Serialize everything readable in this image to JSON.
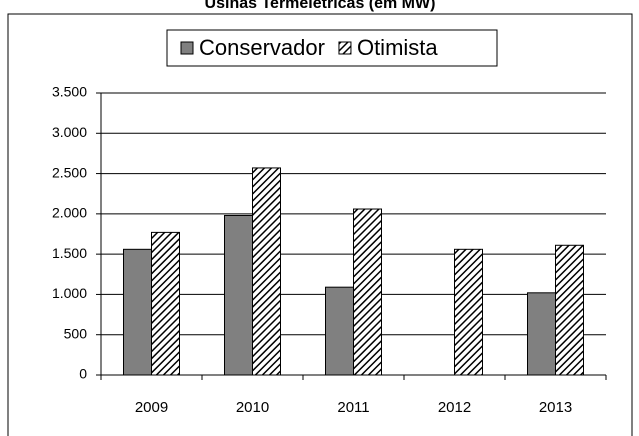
{
  "chart_data": {
    "type": "bar",
    "title": "Usinas Termelétricas  (em MW)",
    "categories": [
      "2009",
      "2010",
      "2011",
      "2012",
      "2013"
    ],
    "series": [
      {
        "name": "Conservador",
        "color": "#808080",
        "fill": "solid",
        "values": [
          1560,
          1980,
          1090,
          0,
          1020
        ]
      },
      {
        "name": "Otimista",
        "color": "#000000",
        "fill": "hatch",
        "values": [
          1770,
          2570,
          2060,
          1560,
          1610
        ]
      }
    ],
    "ylim": [
      0,
      3500
    ],
    "yticks": [
      0,
      {
        "value": 500,
        "label": "500"
      },
      {
        "value": 1000,
        "label": "1.000"
      },
      {
        "value": 1500,
        "label": "1.500"
      },
      {
        "value": 2000,
        "label": "2.000"
      },
      {
        "value": 2500,
        "label": "2.500"
      },
      {
        "value": 3000,
        "label": "3.000"
      },
      {
        "value": 3500,
        "label": "3.500"
      }
    ],
    "grid": true,
    "legend": "top"
  }
}
